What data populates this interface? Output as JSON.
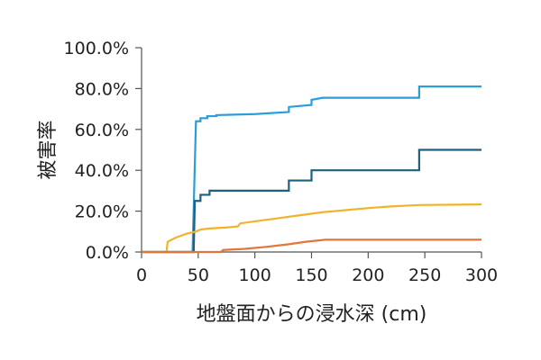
{
  "chart_data": {
    "type": "line",
    "xlabel": "地盤面からの浸水深 (cm)",
    "ylabel": "被害率",
    "xlim": [
      0,
      300
    ],
    "ylim": [
      0,
      100
    ],
    "x_ticks": [
      0,
      50,
      100,
      150,
      200,
      250,
      300
    ],
    "y_ticks": [
      0,
      20,
      40,
      60,
      80,
      100
    ],
    "y_tick_labels": [
      "0.0%",
      "20.0%",
      "40.0%",
      "60.0%",
      "80.0%",
      "100.0%"
    ],
    "x_tick_labels": [
      "0",
      "50",
      "100",
      "150",
      "200",
      "250",
      "300"
    ],
    "grid": false,
    "legend": "none",
    "series": [
      {
        "color": "#2a9fd6",
        "points": [
          [
            0,
            0
          ],
          [
            45,
            0
          ],
          [
            48,
            64
          ],
          [
            52,
            64
          ],
          [
            52,
            65.5
          ],
          [
            58,
            65.5
          ],
          [
            58,
            66.5
          ],
          [
            66,
            66.5
          ],
          [
            66,
            67
          ],
          [
            100,
            67.5
          ],
          [
            130,
            68.5
          ],
          [
            130,
            71
          ],
          [
            150,
            72
          ],
          [
            150,
            74.5
          ],
          [
            155,
            75
          ],
          [
            160,
            75.5
          ],
          [
            245,
            75.5
          ],
          [
            245,
            81
          ],
          [
            300,
            81
          ]
        ]
      },
      {
        "color": "#1f5f7f",
        "points": [
          [
            0,
            0
          ],
          [
            46,
            0
          ],
          [
            47,
            25
          ],
          [
            52,
            25
          ],
          [
            52,
            28
          ],
          [
            60,
            28
          ],
          [
            60,
            30
          ],
          [
            130,
            30
          ],
          [
            130,
            35
          ],
          [
            150,
            35
          ],
          [
            150,
            40
          ],
          [
            245,
            40
          ],
          [
            245,
            50
          ],
          [
            300,
            50
          ]
        ]
      },
      {
        "color": "#f2b22c",
        "points": [
          [
            0,
            0
          ],
          [
            22,
            0
          ],
          [
            23,
            5
          ],
          [
            30,
            7
          ],
          [
            40,
            9
          ],
          [
            48,
            10
          ],
          [
            52,
            11
          ],
          [
            60,
            11.5
          ],
          [
            75,
            12
          ],
          [
            85,
            12.5
          ],
          [
            87,
            14
          ],
          [
            100,
            15
          ],
          [
            120,
            16.5
          ],
          [
            140,
            18
          ],
          [
            160,
            19.5
          ],
          [
            180,
            20.5
          ],
          [
            200,
            21.5
          ],
          [
            220,
            22.3
          ],
          [
            245,
            23
          ],
          [
            300,
            23.3
          ]
        ]
      },
      {
        "color": "#e3743a",
        "points": [
          [
            0,
            0
          ],
          [
            70,
            0
          ],
          [
            72,
            1
          ],
          [
            90,
            1.5
          ],
          [
            110,
            2.5
          ],
          [
            130,
            3.8
          ],
          [
            145,
            5
          ],
          [
            162,
            6
          ],
          [
            300,
            6
          ]
        ]
      }
    ]
  }
}
